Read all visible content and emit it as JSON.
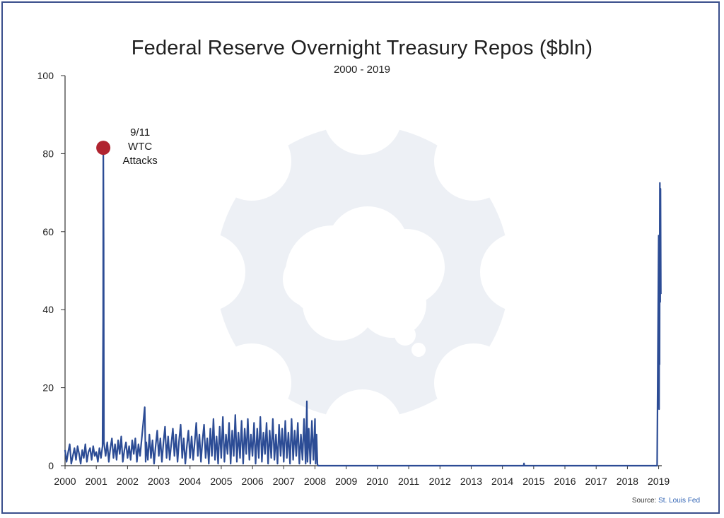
{
  "chart_data": {
    "type": "line",
    "title": "Federal Reserve Overnight Treasury Repos ($bln)",
    "subtitle": "2000 - 2019",
    "xlabel": "",
    "ylabel": "",
    "xlim": [
      2000,
      2019.1
    ],
    "ylim": [
      0,
      100
    ],
    "x_ticks": [
      "2000",
      "2001",
      "2002",
      "2003",
      "2004",
      "2005",
      "2006",
      "2007",
      "2008",
      "2009",
      "2010",
      "2011",
      "2012",
      "2013",
      "2014",
      "2015",
      "2016",
      "2017",
      "2018",
      "2019"
    ],
    "y_ticks": [
      "0",
      "20",
      "40",
      "60",
      "80",
      "100"
    ],
    "grid": false,
    "series": [
      {
        "color": "#2c4c95",
        "points": [
          [
            2000.0,
            4.0
          ],
          [
            2000.05,
            1.0
          ],
          [
            2000.1,
            3.5
          ],
          [
            2000.15,
            5.5
          ],
          [
            2000.2,
            0.5
          ],
          [
            2000.25,
            2.5
          ],
          [
            2000.3,
            4.5
          ],
          [
            2000.35,
            1.5
          ],
          [
            2000.4,
            5.0
          ],
          [
            2000.45,
            3.0
          ],
          [
            2000.5,
            0.5
          ],
          [
            2000.55,
            4.0
          ],
          [
            2000.6,
            2.0
          ],
          [
            2000.65,
            5.5
          ],
          [
            2000.7,
            1.0
          ],
          [
            2000.75,
            3.5
          ],
          [
            2000.8,
            4.5
          ],
          [
            2000.85,
            1.5
          ],
          [
            2000.9,
            5.0
          ],
          [
            2000.95,
            2.5
          ],
          [
            2001.0,
            3.5
          ],
          [
            2001.05,
            1.0
          ],
          [
            2001.1,
            4.5
          ],
          [
            2001.15,
            2.0
          ],
          [
            2001.2,
            5.0
          ],
          [
            2001.22,
            38.0
          ],
          [
            2001.225,
            81.5
          ],
          [
            2001.235,
            57.0
          ],
          [
            2001.245,
            6.0
          ],
          [
            2001.3,
            2.5
          ],
          [
            2001.35,
            6.0
          ],
          [
            2001.4,
            1.0
          ],
          [
            2001.45,
            4.5
          ],
          [
            2001.5,
            7.0
          ],
          [
            2001.55,
            2.0
          ],
          [
            2001.6,
            5.5
          ],
          [
            2001.65,
            1.5
          ],
          [
            2001.7,
            6.5
          ],
          [
            2001.75,
            3.0
          ],
          [
            2001.8,
            7.5
          ],
          [
            2001.85,
            1.0
          ],
          [
            2001.9,
            4.0
          ],
          [
            2001.95,
            6.0
          ],
          [
            2002.0,
            2.0
          ],
          [
            2002.05,
            5.0
          ],
          [
            2002.1,
            1.5
          ],
          [
            2002.15,
            6.5
          ],
          [
            2002.2,
            3.0
          ],
          [
            2002.25,
            7.0
          ],
          [
            2002.3,
            1.0
          ],
          [
            2002.35,
            5.5
          ],
          [
            2002.4,
            2.5
          ],
          [
            2002.55,
            15.0
          ],
          [
            2002.58,
            1.0
          ],
          [
            2002.6,
            6.0
          ],
          [
            2002.65,
            1.5
          ],
          [
            2002.7,
            8.0
          ],
          [
            2002.75,
            2.0
          ],
          [
            2002.8,
            6.5
          ],
          [
            2002.85,
            0.5
          ],
          [
            2002.9,
            5.0
          ],
          [
            2002.95,
            9.0
          ],
          [
            2003.0,
            2.5
          ],
          [
            2003.05,
            7.0
          ],
          [
            2003.1,
            1.0
          ],
          [
            2003.15,
            6.0
          ],
          [
            2003.2,
            10.0
          ],
          [
            2003.25,
            2.0
          ],
          [
            2003.3,
            7.5
          ],
          [
            2003.35,
            1.5
          ],
          [
            2003.4,
            5.5
          ],
          [
            2003.45,
            9.5
          ],
          [
            2003.5,
            2.5
          ],
          [
            2003.55,
            8.0
          ],
          [
            2003.6,
            1.0
          ],
          [
            2003.65,
            6.5
          ],
          [
            2003.7,
            10.5
          ],
          [
            2003.75,
            2.0
          ],
          [
            2003.8,
            7.0
          ],
          [
            2003.85,
            0.5
          ],
          [
            2003.9,
            5.0
          ],
          [
            2003.95,
            9.0
          ],
          [
            2004.0,
            2.0
          ],
          [
            2004.05,
            7.5
          ],
          [
            2004.1,
            1.5
          ],
          [
            2004.15,
            6.0
          ],
          [
            2004.2,
            11.0
          ],
          [
            2004.25,
            2.5
          ],
          [
            2004.3,
            8.0
          ],
          [
            2004.35,
            1.0
          ],
          [
            2004.4,
            6.5
          ],
          [
            2004.45,
            10.5
          ],
          [
            2004.5,
            2.0
          ],
          [
            2004.55,
            7.0
          ],
          [
            2004.6,
            0.5
          ],
          [
            2004.65,
            9.5
          ],
          [
            2004.7,
            2.5
          ],
          [
            2004.75,
            12.0
          ],
          [
            2004.8,
            1.5
          ],
          [
            2004.85,
            7.5
          ],
          [
            2004.9,
            0.5
          ],
          [
            2004.95,
            10.0
          ],
          [
            2005.0,
            2.0
          ],
          [
            2005.05,
            12.5
          ],
          [
            2005.1,
            1.0
          ],
          [
            2005.15,
            8.0
          ],
          [
            2005.2,
            3.0
          ],
          [
            2005.25,
            11.0
          ],
          [
            2005.3,
            0.5
          ],
          [
            2005.35,
            9.0
          ],
          [
            2005.4,
            2.5
          ],
          [
            2005.45,
            13.0
          ],
          [
            2005.5,
            1.0
          ],
          [
            2005.55,
            8.5
          ],
          [
            2005.6,
            2.0
          ],
          [
            2005.65,
            11.5
          ],
          [
            2005.7,
            0.5
          ],
          [
            2005.75,
            9.5
          ],
          [
            2005.8,
            3.0
          ],
          [
            2005.85,
            12.0
          ],
          [
            2005.9,
            1.5
          ],
          [
            2005.95,
            8.0
          ],
          [
            2006.0,
            2.5
          ],
          [
            2006.05,
            11.0
          ],
          [
            2006.1,
            0.5
          ],
          [
            2006.15,
            9.5
          ],
          [
            2006.2,
            2.0
          ],
          [
            2006.25,
            12.5
          ],
          [
            2006.3,
            1.0
          ],
          [
            2006.35,
            8.5
          ],
          [
            2006.4,
            3.0
          ],
          [
            2006.45,
            11.0
          ],
          [
            2006.5,
            0.5
          ],
          [
            2006.55,
            9.0
          ],
          [
            2006.6,
            2.0
          ],
          [
            2006.65,
            12.0
          ],
          [
            2006.7,
            1.5
          ],
          [
            2006.75,
            8.0
          ],
          [
            2006.8,
            0.5
          ],
          [
            2006.85,
            10.5
          ],
          [
            2006.9,
            2.5
          ],
          [
            2006.95,
            9.5
          ],
          [
            2007.0,
            1.0
          ],
          [
            2007.05,
            11.5
          ],
          [
            2007.1,
            2.0
          ],
          [
            2007.15,
            8.5
          ],
          [
            2007.2,
            0.5
          ],
          [
            2007.25,
            12.0
          ],
          [
            2007.3,
            1.5
          ],
          [
            2007.35,
            9.0
          ],
          [
            2007.4,
            2.5
          ],
          [
            2007.45,
            11.0
          ],
          [
            2007.5,
            0.5
          ],
          [
            2007.55,
            8.0
          ],
          [
            2007.6,
            1.5
          ],
          [
            2007.65,
            12.0
          ],
          [
            2007.7,
            0.5
          ],
          [
            2007.74,
            16.5
          ],
          [
            2007.76,
            1.0
          ],
          [
            2007.8,
            9.5
          ],
          [
            2007.85,
            0.5
          ],
          [
            2007.9,
            11.5
          ],
          [
            2007.95,
            1.5
          ],
          [
            2008.0,
            12.0
          ],
          [
            2008.02,
            0.5
          ],
          [
            2008.05,
            8.0
          ],
          [
            2008.08,
            0.3
          ],
          [
            2008.1,
            0.0
          ],
          [
            2009.0,
            0.0
          ],
          [
            2010.0,
            0.0
          ],
          [
            2011.0,
            0.0
          ],
          [
            2012.0,
            0.0
          ],
          [
            2013.0,
            0.0
          ],
          [
            2014.0,
            0.0
          ],
          [
            2014.68,
            0.0
          ],
          [
            2014.69,
            0.6
          ],
          [
            2014.7,
            0.0
          ],
          [
            2015.0,
            0.0
          ],
          [
            2016.0,
            0.0
          ],
          [
            2017.0,
            0.0
          ],
          [
            2018.0,
            0.0
          ],
          [
            2018.95,
            0.0
          ],
          [
            2019.0,
            59.0
          ],
          [
            2019.01,
            41.0
          ],
          [
            2019.015,
            14.5
          ],
          [
            2019.02,
            47.0
          ],
          [
            2019.03,
            26.0
          ],
          [
            2019.035,
            58.0
          ],
          [
            2019.04,
            72.5
          ],
          [
            2019.05,
            42.0
          ],
          [
            2019.06,
            71.0
          ],
          [
            2019.07,
            44.0
          ]
        ]
      }
    ],
    "highlight": {
      "x": 2001.225,
      "y": 81.5,
      "color": "#b02430"
    },
    "annotation": {
      "lines": [
        "9/11",
        "WTC",
        "Attacks"
      ]
    }
  },
  "source": {
    "label": "Source:",
    "link": "St. Louis Fed"
  }
}
